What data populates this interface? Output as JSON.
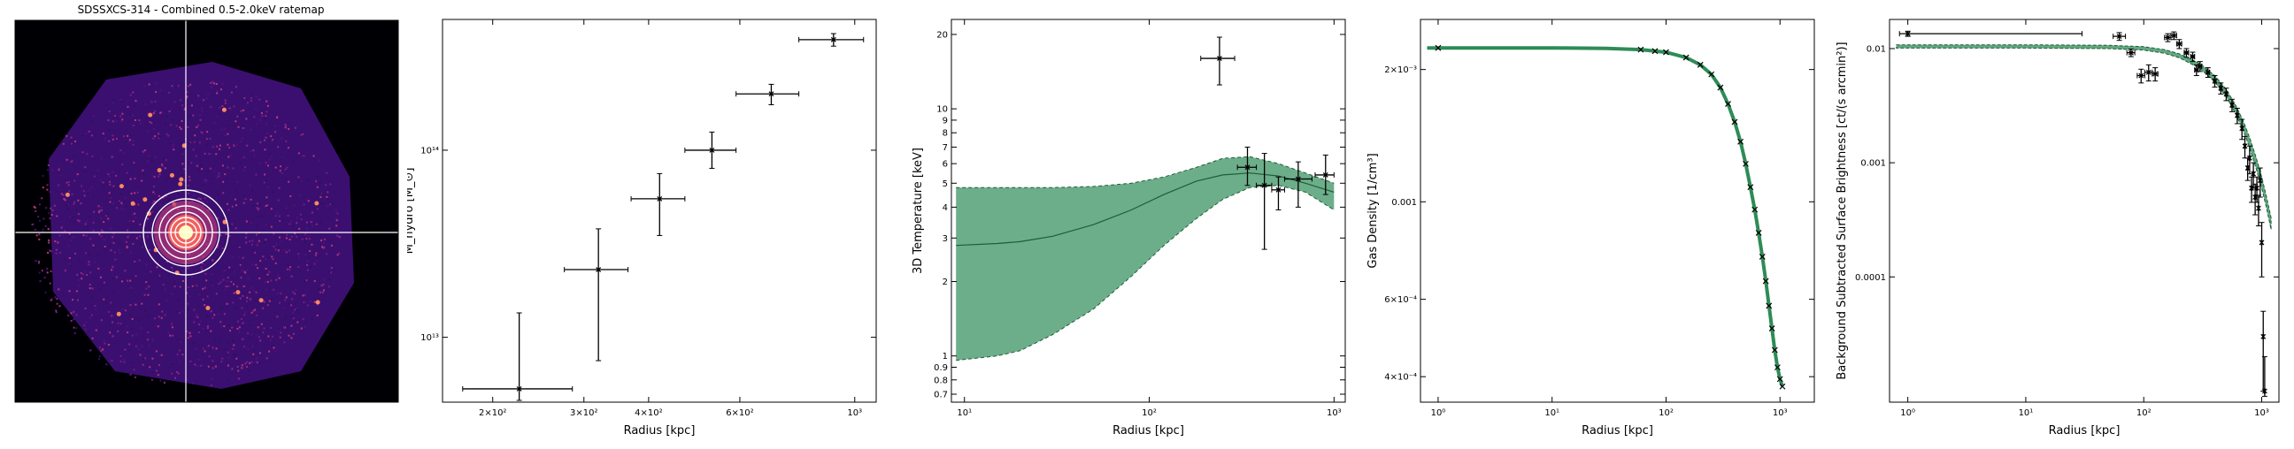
{
  "figure": {
    "ratemap": {
      "title": "SDSSXCS-314 - Combined 0.5-2.0keV ratemap",
      "colormap": "magma",
      "crosshair_color": "#ffffff",
      "contour_color": "#ffffff"
    }
  },
  "chart_data": [
    {
      "type": "scatter",
      "xscale": "log",
      "yscale": "log",
      "xlabel": "Radius [kpc]",
      "ylabel": "M_hydro [M_⊙]",
      "xlim": [
        160,
        1100
      ],
      "ylim": [
        4500000000000.0,
        500000000000000.0
      ],
      "xticks": [
        {
          "v": 200,
          "label": "2×10²"
        },
        {
          "v": 300,
          "label": "3×10²"
        },
        {
          "v": 400,
          "label": "4×10²"
        },
        {
          "v": 600,
          "label": "6×10²"
        },
        {
          "v": 1000,
          "label": "10³"
        }
      ],
      "yticks": [
        {
          "v": 10000000000000.0,
          "label": "10¹³"
        },
        {
          "v": 100000000000000.0,
          "label": "10¹⁴"
        }
      ],
      "points": [
        {
          "x": 225,
          "y": 5300000000000.0,
          "xerr": [
            175,
            285
          ],
          "yerr": [
            4600000000000.0,
            13500000000000.0
          ]
        },
        {
          "x": 320,
          "y": 23000000000000.0,
          "xerr": [
            275,
            365
          ],
          "yerr": [
            7500000000000.0,
            38000000000000.0
          ]
        },
        {
          "x": 420,
          "y": 55000000000000.0,
          "xerr": [
            370,
            470
          ],
          "yerr": [
            35000000000000.0,
            75000000000000.0
          ]
        },
        {
          "x": 530,
          "y": 100000000000000.0,
          "xerr": [
            470,
            590
          ],
          "yerr": [
            80000000000000.0,
            125000000000000.0
          ]
        },
        {
          "x": 690,
          "y": 200000000000000.0,
          "xerr": [
            590,
            780
          ],
          "yerr": [
            175000000000000.0,
            225000000000000.0
          ]
        },
        {
          "x": 910,
          "y": 390000000000000.0,
          "xerr": [
            780,
            1040
          ],
          "yerr": [
            360000000000000.0,
            420000000000000.0
          ]
        }
      ],
      "color": "#000000"
    },
    {
      "type": "area",
      "xscale": "log",
      "yscale": "log",
      "xlabel": "Radius [kpc]",
      "ylabel": "3D Temperature [keV]",
      "xlim": [
        8.5,
        1150
      ],
      "ylim": [
        0.65,
        23
      ],
      "xticks": [
        {
          "v": 10,
          "label": "10¹"
        },
        {
          "v": 100,
          "label": "10²"
        },
        {
          "v": 1000,
          "label": "10³"
        }
      ],
      "yticks": [
        {
          "v": 0.7,
          "label": "0.7"
        },
        {
          "v": 0.8,
          "label": "0.8"
        },
        {
          "v": 0.9,
          "label": "0.9"
        },
        {
          "v": 1,
          "label": "1"
        },
        {
          "v": 2,
          "label": "2"
        },
        {
          "v": 3,
          "label": "3"
        },
        {
          "v": 4,
          "label": "4"
        },
        {
          "v": 5,
          "label": "5"
        },
        {
          "v": 6,
          "label": "6"
        },
        {
          "v": 7,
          "label": "7"
        },
        {
          "v": 8,
          "label": "8"
        },
        {
          "v": 9,
          "label": "9"
        },
        {
          "v": 10,
          "label": "10"
        },
        {
          "v": 20,
          "label": "20"
        }
      ],
      "band": {
        "x": [
          9,
          15,
          20,
          30,
          50,
          80,
          120,
          180,
          250,
          350,
          500,
          700,
          1000
        ],
        "lower": [
          0.96,
          1.0,
          1.05,
          1.22,
          1.55,
          2.1,
          2.8,
          3.6,
          4.3,
          4.8,
          4.9,
          4.6,
          3.9
        ],
        "upper": [
          4.8,
          4.8,
          4.8,
          4.8,
          4.85,
          5.0,
          5.3,
          5.8,
          6.3,
          6.4,
          6.0,
          5.5,
          5.0
        ],
        "median": [
          2.8,
          2.85,
          2.9,
          3.05,
          3.4,
          3.9,
          4.5,
          5.1,
          5.4,
          5.5,
          5.35,
          5.0,
          4.6
        ]
      },
      "band_color": "#2e8b57",
      "points": [
        {
          "x": 240,
          "y": 16.0,
          "xerr": [
            190,
            290
          ],
          "yerr": [
            12.5,
            19.5
          ]
        },
        {
          "x": 340,
          "y": 5.8,
          "xerr": [
            300,
            380
          ],
          "yerr": [
            4.9,
            7.0
          ]
        },
        {
          "x": 420,
          "y": 4.9,
          "xerr": [
            380,
            460
          ],
          "yerr": [
            2.7,
            6.6
          ]
        },
        {
          "x": 500,
          "y": 4.7,
          "xerr": [
            460,
            540
          ],
          "yerr": [
            3.9,
            5.3
          ]
        },
        {
          "x": 640,
          "y": 5.2,
          "xerr": [
            540,
            760
          ],
          "yerr": [
            4.0,
            6.1
          ]
        },
        {
          "x": 900,
          "y": 5.4,
          "xerr": [
            790,
            1000
          ],
          "yerr": [
            4.5,
            6.5
          ]
        }
      ]
    },
    {
      "type": "line",
      "xscale": "log",
      "yscale": "log",
      "xlabel": "Radius [kpc]",
      "ylabel": "Gas Density [1/cm³]",
      "xlim": [
        0.7,
        2000
      ],
      "ylim": [
        0.00035,
        0.0026
      ],
      "xticks": [
        {
          "v": 1,
          "label": "10⁰"
        },
        {
          "v": 10,
          "label": "10¹"
        },
        {
          "v": 100,
          "label": "10²"
        },
        {
          "v": 1000,
          "label": "10³"
        }
      ],
      "yticks": [
        {
          "v": 0.002,
          "label": "2×10⁻³"
        },
        {
          "v": 0.001,
          "label": "0.001"
        },
        {
          "v": 0.0006,
          "label": "6×10⁻⁴"
        },
        {
          "v": 0.0004,
          "label": "4×10⁻⁴"
        }
      ],
      "model": {
        "x": [
          0.8,
          1,
          10,
          30,
          60,
          100,
          150,
          200,
          250,
          300,
          350,
          400,
          450,
          500,
          550,
          600,
          650,
          700,
          750,
          800,
          850,
          900,
          950,
          1000,
          1050
        ],
        "y": [
          0.00224,
          0.00224,
          0.00224,
          0.002235,
          0.00222,
          0.00219,
          0.00213,
          0.00205,
          0.00195,
          0.00182,
          0.00167,
          0.00152,
          0.00137,
          0.00122,
          0.00108,
          0.00096,
          0.00085,
          0.00075,
          0.00066,
          0.00058,
          0.000515,
          0.00046,
          0.00042,
          0.000395,
          0.00038
        ]
      },
      "points_x": [
        1,
        60,
        80,
        100,
        150,
        200,
        250,
        300,
        350,
        400,
        450,
        500,
        550,
        600,
        650,
        700,
        750,
        800,
        850,
        900,
        950,
        1000,
        1050
      ],
      "line_color": "#2e8b57"
    },
    {
      "type": "scatter",
      "xscale": "log",
      "yscale": "log",
      "xlabel": "Radius [kpc]",
      "ylabel": "Background Subtracted Surface Brightness [ct/(s arcmin²)]",
      "xlim": [
        0.7,
        1400
      ],
      "ylim": [
        8e-06,
        0.018
      ],
      "xticks": [
        {
          "v": 1,
          "label": "10⁰"
        },
        {
          "v": 10,
          "label": "10¹"
        },
        {
          "v": 100,
          "label": "10²"
        },
        {
          "v": 1000,
          "label": "10³"
        }
      ],
      "yticks": [
        {
          "v": 0.01,
          "label": "0.01"
        },
        {
          "v": 0.001,
          "label": "0.001"
        },
        {
          "v": 0.0001,
          "label": "0.0001"
        }
      ],
      "model": {
        "x": [
          0.8,
          10,
          50,
          100,
          150,
          200,
          300,
          400,
          500,
          600,
          700,
          800,
          900,
          1000,
          1100,
          1200
        ],
        "upper": [
          0.0108,
          0.0108,
          0.0107,
          0.0104,
          0.0098,
          0.009,
          0.0074,
          0.0058,
          0.0044,
          0.0032,
          0.0023,
          0.0016,
          0.0011,
          0.00075,
          0.0005,
          0.00033
        ],
        "lower": [
          0.0101,
          0.0101,
          0.01,
          0.0097,
          0.0091,
          0.0083,
          0.0067,
          0.0051,
          0.0038,
          0.0027,
          0.0019,
          0.0013,
          0.00088,
          0.0006,
          0.0004,
          0.00026
        ]
      },
      "band_color": "#2e8b57",
      "points": [
        {
          "x": 1,
          "y": 0.0135,
          "xerr": [
            0.85,
            30
          ],
          "yerr": [
            0.0128,
            0.0142
          ]
        },
        {
          "x": 62,
          "y": 0.0128,
          "xerr": [
            55,
            70
          ],
          "yerr": [
            0.0118,
            0.0138
          ]
        },
        {
          "x": 78,
          "y": 0.0092,
          "xerr": [
            72,
            84
          ],
          "yerr": [
            0.0085,
            0.0099
          ]
        },
        {
          "x": 95,
          "y": 0.0058,
          "xerr": [
            88,
            102
          ],
          "yerr": [
            0.005,
            0.0066
          ]
        },
        {
          "x": 110,
          "y": 0.0062,
          "xerr": [
            102,
            118
          ],
          "yerr": [
            0.0052,
            0.0072
          ]
        },
        {
          "x": 125,
          "y": 0.006,
          "xerr": [
            118,
            132
          ],
          "yerr": [
            0.0052,
            0.0068
          ]
        },
        {
          "x": 160,
          "y": 0.0125,
          "xerr": [
            150,
            170
          ],
          "yerr": [
            0.0115,
            0.0135
          ]
        },
        {
          "x": 180,
          "y": 0.013,
          "xerr": [
            170,
            190
          ],
          "yerr": [
            0.012,
            0.014
          ]
        },
        {
          "x": 200,
          "y": 0.011,
          "xerr": [
            190,
            210
          ],
          "yerr": [
            0.01,
            0.012
          ]
        },
        {
          "x": 230,
          "y": 0.0092,
          "xerr": [
            220,
            240
          ],
          "yerr": [
            0.0084,
            0.01
          ]
        },
        {
          "x": 260,
          "y": 0.0085,
          "xerr": [
            250,
            270
          ],
          "yerr": [
            0.0077,
            0.0093
          ]
        },
        {
          "x": 280,
          "y": 0.0065,
          "xerr": [
            270,
            290
          ],
          "yerr": [
            0.0058,
            0.0072
          ]
        },
        {
          "x": 300,
          "y": 0.007,
          "xerr": [
            290,
            310
          ],
          "yerr": [
            0.0063,
            0.0077
          ]
        },
        {
          "x": 350,
          "y": 0.0062,
          "xerr": [
            340,
            360
          ],
          "yerr": [
            0.0056,
            0.0068
          ]
        },
        {
          "x": 400,
          "y": 0.0052,
          "xerr": [
            390,
            410
          ],
          "yerr": [
            0.0046,
            0.0058
          ]
        },
        {
          "x": 450,
          "y": 0.0045,
          "xerr": [
            440,
            460
          ],
          "yerr": [
            0.004,
            0.005
          ]
        },
        {
          "x": 500,
          "y": 0.004,
          "xerr": [
            490,
            510
          ],
          "yerr": [
            0.0035,
            0.0045
          ]
        },
        {
          "x": 560,
          "y": 0.0032,
          "xerr": [
            550,
            570
          ],
          "yerr": [
            0.0028,
            0.0036
          ]
        },
        {
          "x": 620,
          "y": 0.0026,
          "xerr": [
            610,
            630
          ],
          "yerr": [
            0.0022,
            0.003
          ]
        },
        {
          "x": 680,
          "y": 0.002,
          "xerr": [
            670,
            690
          ],
          "yerr": [
            0.0016,
            0.0024
          ]
        },
        {
          "x": 720,
          "y": 0.0014,
          "xerr": [
            710,
            730
          ],
          "yerr": [
            0.0011,
            0.0017
          ]
        },
        {
          "x": 760,
          "y": 0.0009,
          "xerr": [
            750,
            770
          ],
          "yerr": [
            0.0007,
            0.0011
          ]
        },
        {
          "x": 790,
          "y": 0.0011,
          "xerr": [
            780,
            800
          ],
          "yerr": [
            0.0008,
            0.0014
          ]
        },
        {
          "x": 820,
          "y": 0.0006,
          "xerr": [
            810,
            830
          ],
          "yerr": [
            0.00045,
            0.00075
          ]
        },
        {
          "x": 850,
          "y": 0.0008,
          "xerr": [
            840,
            860
          ],
          "yerr": [
            0.0006,
            0.001
          ]
        },
        {
          "x": 880,
          "y": 0.0005,
          "xerr": [
            870,
            890
          ],
          "yerr": [
            0.00035,
            0.00065
          ]
        },
        {
          "x": 910,
          "y": 0.0006,
          "xerr": [
            900,
            920
          ],
          "yerr": [
            0.00045,
            0.00075
          ]
        },
        {
          "x": 940,
          "y": 0.0004,
          "xerr": [
            930,
            950
          ],
          "yerr": [
            0.00028,
            0.00052
          ]
        },
        {
          "x": 970,
          "y": 0.0007,
          "xerr": [
            960,
            980
          ],
          "yerr": [
            0.0005,
            0.0009
          ]
        },
        {
          "x": 1000,
          "y": 0.0002,
          "xerr": [
            990,
            1010
          ],
          "yerr": [
            0.0001,
            0.0003
          ]
        },
        {
          "x": 1030,
          "y": 3e-05,
          "xerr": [
            1020,
            1040
          ],
          "yerr": [
            1e-05,
            5e-05
          ]
        },
        {
          "x": 1060,
          "y": 1e-05,
          "xerr": [
            1050,
            1070
          ],
          "yerr": [
            9e-06,
            2e-05
          ]
        }
      ]
    }
  ]
}
